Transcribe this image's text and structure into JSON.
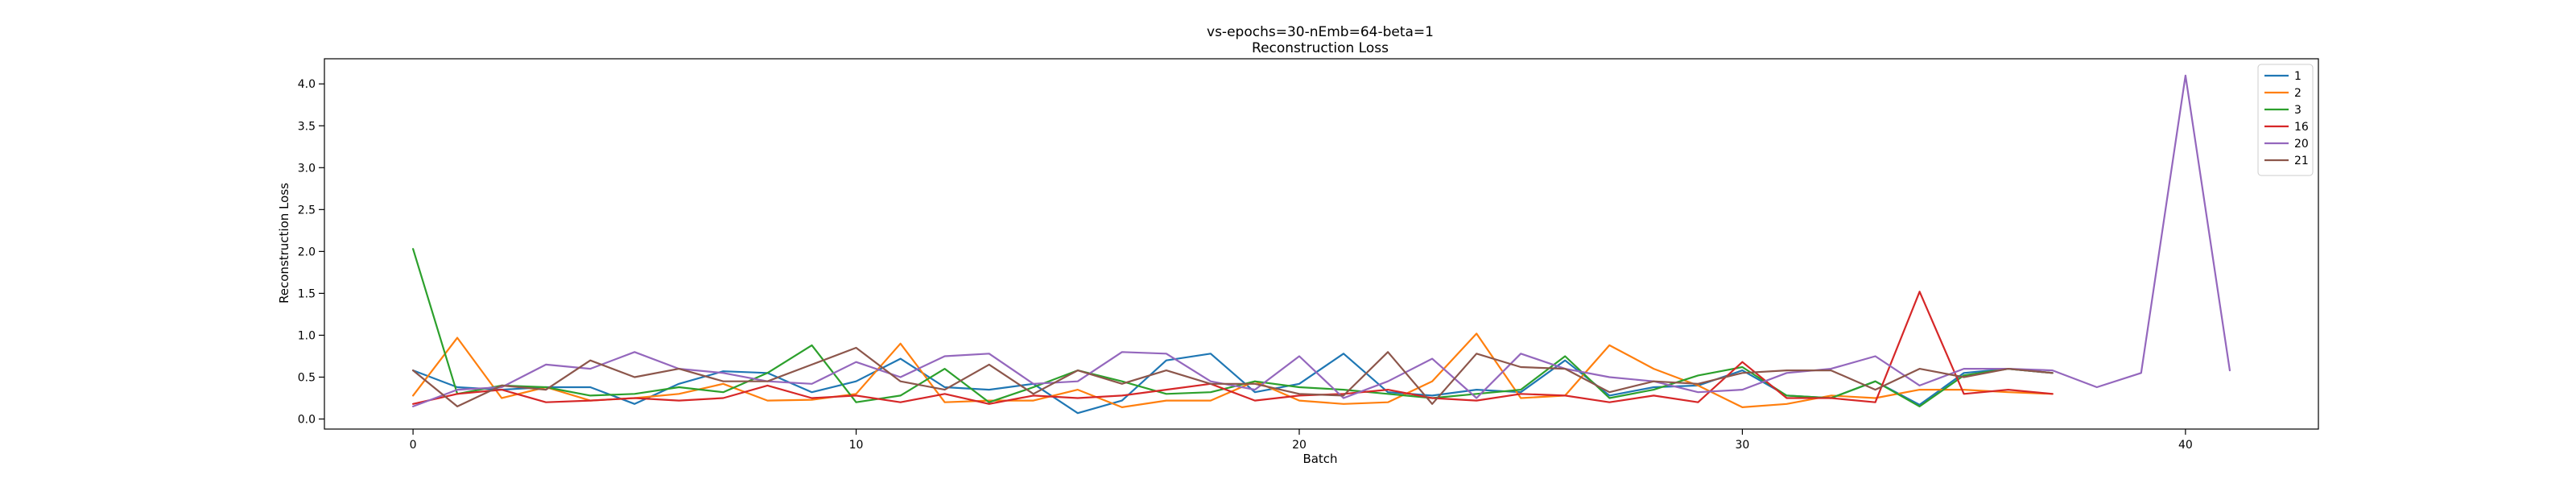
{
  "chart_data": {
    "type": "line",
    "title": "vs-epochs=30-nEmb=64-beta=1",
    "subtitle": "Reconstruction Loss",
    "xlabel": "Batch",
    "ylabel": "Reconstruction Loss",
    "xlim": [
      -2,
      43
    ],
    "ylim": [
      -0.12,
      4.3
    ],
    "xticks": [
      0,
      10,
      20,
      30,
      40
    ],
    "yticks": [
      0.0,
      0.5,
      1.0,
      1.5,
      2.0,
      2.5,
      3.0,
      3.5,
      4.0
    ],
    "ytick_labels": [
      "0.0",
      "0.5",
      "1.0",
      "1.5",
      "2.0",
      "2.5",
      "3.0",
      "3.5",
      "4.0"
    ],
    "grid": false,
    "legend": "top-right",
    "series": [
      {
        "name": "1",
        "color": "#1f77b4",
        "values": [
          0.58,
          0.38,
          0.35,
          0.38,
          0.38,
          0.18,
          0.42,
          0.57,
          0.55,
          0.32,
          0.45,
          0.72,
          0.38,
          0.35,
          0.42,
          0.07,
          0.22,
          0.7,
          0.78,
          0.32,
          0.42,
          0.78,
          0.32,
          0.28,
          0.35,
          0.32,
          0.7,
          0.28,
          0.38,
          0.4,
          0.58,
          0.28,
          0.25,
          0.45,
          0.17,
          0.55,
          0.6,
          0.55
        ]
      },
      {
        "name": "2",
        "color": "#ff7f0e",
        "values": [
          0.28,
          0.97,
          0.25,
          0.38,
          0.22,
          0.25,
          0.3,
          0.42,
          0.22,
          0.23,
          0.3,
          0.9,
          0.2,
          0.22,
          0.22,
          0.35,
          0.14,
          0.22,
          0.22,
          0.45,
          0.22,
          0.18,
          0.2,
          0.45,
          1.02,
          0.25,
          0.28,
          0.88,
          0.6,
          0.4,
          0.14,
          0.18,
          0.28,
          0.25,
          0.35,
          0.35,
          0.32,
          0.3
        ]
      },
      {
        "name": "3",
        "color": "#2ca02c",
        "values": [
          2.03,
          0.3,
          0.4,
          0.38,
          0.28,
          0.3,
          0.38,
          0.32,
          0.55,
          0.88,
          0.2,
          0.28,
          0.6,
          0.2,
          0.38,
          0.58,
          0.45,
          0.3,
          0.32,
          0.45,
          0.38,
          0.35,
          0.3,
          0.25,
          0.3,
          0.35,
          0.75,
          0.25,
          0.35,
          0.52,
          0.62,
          0.28,
          0.25,
          0.45,
          0.15,
          0.52,
          0.6,
          0.55
        ]
      },
      {
        "name": "16",
        "color": "#d62728",
        "values": [
          0.18,
          0.3,
          0.35,
          0.2,
          0.22,
          0.25,
          0.22,
          0.25,
          0.4,
          0.25,
          0.28,
          0.2,
          0.3,
          0.18,
          0.28,
          0.25,
          0.28,
          0.35,
          0.42,
          0.22,
          0.28,
          0.3,
          0.35,
          0.25,
          0.22,
          0.3,
          0.28,
          0.2,
          0.28,
          0.2,
          0.68,
          0.25,
          0.25,
          0.2,
          1.52,
          0.3,
          0.35,
          0.3
        ]
      },
      {
        "name": "20",
        "color": "#9467bd",
        "values": [
          0.15,
          0.35,
          0.38,
          0.65,
          0.6,
          0.8,
          0.6,
          0.55,
          0.45,
          0.42,
          0.68,
          0.5,
          0.75,
          0.78,
          0.42,
          0.45,
          0.8,
          0.78,
          0.45,
          0.35,
          0.75,
          0.25,
          0.45,
          0.72,
          0.25,
          0.78,
          0.6,
          0.5,
          0.45,
          0.32,
          0.35,
          0.55,
          0.6,
          0.75,
          0.4,
          0.6,
          0.6,
          0.58,
          0.38,
          0.55,
          4.1,
          0.58
        ]
      },
      {
        "name": "21",
        "color": "#8c564b",
        "values": [
          0.58,
          0.15,
          0.4,
          0.35,
          0.7,
          0.5,
          0.6,
          0.45,
          0.45,
          0.65,
          0.85,
          0.45,
          0.35,
          0.65,
          0.3,
          0.58,
          0.42,
          0.58,
          0.42,
          0.42,
          0.3,
          0.28,
          0.8,
          0.18,
          0.78,
          0.62,
          0.6,
          0.32,
          0.45,
          0.42,
          0.55,
          0.58,
          0.58,
          0.35,
          0.6,
          0.5,
          0.6,
          0.55
        ]
      }
    ]
  }
}
